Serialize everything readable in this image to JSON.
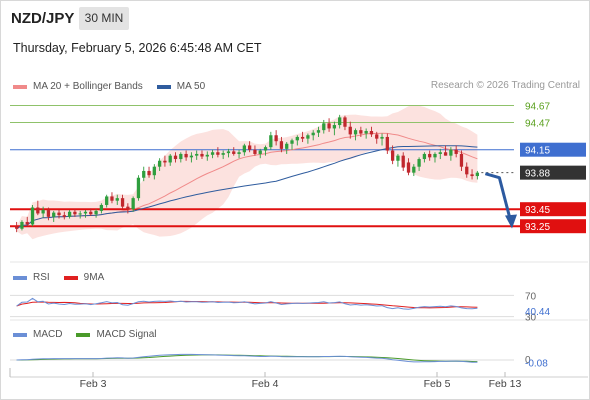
{
  "header": {
    "symbol": "NZD/JPY",
    "timeframe": "30 MIN",
    "datetime": "Thursday, February 5, 2026 6:45:48 AM CET",
    "copyright": "Research © 2026 Trading Central"
  },
  "legends": {
    "main": [
      {
        "label": "MA 20 + Bollinger Bands",
        "color": "#f08a8a"
      },
      {
        "label": "MA 50",
        "color": "#2f5c9e"
      }
    ],
    "rsi": [
      {
        "label": "RSI",
        "color": "#6b8fd6"
      },
      {
        "label": "9MA",
        "color": "#e02020"
      }
    ],
    "macd": [
      {
        "label": "MACD",
        "color": "#6b8fd6"
      },
      {
        "label": "MACD Signal",
        "color": "#4a9a2a"
      }
    ]
  },
  "chart_data": {
    "type": "candlestick",
    "xaxis_labels": [
      "Feb 3",
      "Feb 4",
      "Feb 5",
      "Feb 13"
    ],
    "ylim": [
      93.17,
      94.77
    ],
    "levels": [
      {
        "value": 94.67,
        "label": "94.67",
        "kind": "resistance",
        "color": "#8fc26a"
      },
      {
        "value": 94.47,
        "label": "94.47",
        "kind": "resistance",
        "color": "#8fc26a"
      },
      {
        "value": 94.15,
        "label": "94.15",
        "kind": "pivot",
        "color": "#3f6fd0"
      },
      {
        "value": 93.88,
        "label": "93.88",
        "kind": "last",
        "color": "#333333"
      },
      {
        "value": 93.45,
        "label": "93.45",
        "kind": "support",
        "color": "#e01010"
      },
      {
        "value": 93.25,
        "label": "93.25",
        "kind": "support",
        "color": "#e01010"
      }
    ],
    "candles": [
      [
        93.24,
        93.3,
        93.18,
        93.22
      ],
      [
        93.22,
        93.32,
        93.2,
        93.3
      ],
      [
        93.3,
        93.36,
        93.25,
        93.27
      ],
      [
        93.27,
        93.5,
        93.25,
        93.47
      ],
      [
        93.47,
        93.55,
        93.38,
        93.4
      ],
      [
        93.4,
        93.48,
        93.35,
        93.44
      ],
      [
        93.44,
        93.47,
        93.32,
        93.36
      ],
      [
        93.36,
        93.43,
        93.3,
        93.41
      ],
      [
        93.41,
        93.44,
        93.34,
        93.38
      ],
      [
        93.38,
        93.42,
        93.33,
        93.36
      ],
      [
        93.36,
        93.44,
        93.34,
        93.42
      ],
      [
        93.42,
        93.45,
        93.36,
        93.39
      ],
      [
        93.39,
        93.43,
        93.34,
        93.4
      ],
      [
        93.4,
        93.44,
        93.35,
        93.42
      ],
      [
        93.42,
        93.46,
        93.37,
        93.39
      ],
      [
        93.39,
        93.45,
        93.35,
        93.43
      ],
      [
        93.43,
        93.52,
        93.4,
        93.5
      ],
      [
        93.5,
        93.62,
        93.47,
        93.6
      ],
      [
        93.6,
        93.65,
        93.52,
        93.55
      ],
      [
        93.55,
        93.62,
        93.5,
        93.58
      ],
      [
        93.58,
        93.62,
        93.45,
        93.48
      ],
      [
        93.48,
        93.52,
        93.4,
        93.45
      ],
      [
        93.45,
        93.6,
        93.42,
        93.58
      ],
      [
        93.58,
        93.85,
        93.55,
        93.82
      ],
      [
        93.82,
        93.95,
        93.78,
        93.9
      ],
      [
        93.9,
        93.95,
        93.82,
        93.85
      ],
      [
        93.85,
        93.98,
        93.8,
        93.95
      ],
      [
        93.95,
        94.05,
        93.9,
        94.02
      ],
      [
        94.02,
        94.08,
        93.95,
        94.0
      ],
      [
        94.0,
        94.1,
        93.96,
        94.08
      ],
      [
        94.08,
        94.12,
        94.0,
        94.04
      ],
      [
        94.04,
        94.12,
        94.0,
        94.1
      ],
      [
        94.1,
        94.14,
        94.02,
        94.06
      ],
      [
        94.06,
        94.12,
        94.0,
        94.08
      ],
      [
        94.08,
        94.14,
        94.03,
        94.1
      ],
      [
        94.1,
        94.14,
        94.04,
        94.07
      ],
      [
        94.07,
        94.13,
        94.02,
        94.09
      ],
      [
        94.09,
        94.15,
        94.05,
        94.12
      ],
      [
        94.12,
        94.18,
        94.06,
        94.09
      ],
      [
        94.09,
        94.14,
        94.04,
        94.11
      ],
      [
        94.11,
        94.16,
        94.06,
        94.13
      ],
      [
        94.13,
        94.18,
        94.08,
        94.1
      ],
      [
        94.1,
        94.15,
        94.05,
        94.12
      ],
      [
        94.12,
        94.22,
        94.08,
        94.2
      ],
      [
        94.2,
        94.25,
        94.12,
        94.15
      ],
      [
        94.15,
        94.2,
        94.08,
        94.1
      ],
      [
        94.1,
        94.16,
        94.05,
        94.14
      ],
      [
        94.14,
        94.2,
        94.08,
        94.18
      ],
      [
        94.18,
        94.36,
        94.15,
        94.32
      ],
      [
        94.32,
        94.38,
        94.2,
        94.25
      ],
      [
        94.25,
        94.3,
        94.12,
        94.16
      ],
      [
        94.16,
        94.24,
        94.1,
        94.22
      ],
      [
        94.22,
        94.28,
        94.15,
        94.26
      ],
      [
        94.26,
        94.32,
        94.2,
        94.3
      ],
      [
        94.3,
        94.36,
        94.24,
        94.28
      ],
      [
        94.28,
        94.34,
        94.22,
        94.32
      ],
      [
        94.32,
        94.38,
        94.26,
        94.35
      ],
      [
        94.35,
        94.42,
        94.3,
        94.38
      ],
      [
        94.38,
        94.5,
        94.34,
        94.46
      ],
      [
        94.46,
        94.52,
        94.36,
        94.4
      ],
      [
        94.4,
        94.48,
        94.32,
        94.44
      ],
      [
        94.44,
        94.56,
        94.4,
        94.53
      ],
      [
        94.53,
        94.55,
        94.38,
        94.42
      ],
      [
        94.42,
        94.48,
        94.28,
        94.33
      ],
      [
        94.33,
        94.4,
        94.26,
        94.38
      ],
      [
        94.38,
        94.42,
        94.3,
        94.34
      ],
      [
        94.34,
        94.4,
        94.28,
        94.37
      ],
      [
        94.37,
        94.42,
        94.3,
        94.33
      ],
      [
        94.33,
        94.36,
        94.22,
        94.28
      ],
      [
        94.28,
        94.34,
        94.2,
        94.3
      ],
      [
        94.3,
        94.34,
        94.1,
        94.14
      ],
      [
        94.14,
        94.2,
        93.98,
        94.02
      ],
      [
        94.02,
        94.1,
        93.95,
        94.08
      ],
      [
        94.08,
        94.12,
        93.9,
        93.94
      ],
      [
        94.0,
        94.05,
        93.85,
        93.88
      ],
      [
        93.88,
        93.98,
        93.84,
        93.95
      ],
      [
        93.95,
        94.06,
        93.9,
        94.04
      ],
      [
        94.04,
        94.12,
        94.0,
        94.1
      ],
      [
        94.1,
        94.14,
        94.02,
        94.06
      ],
      [
        94.06,
        94.12,
        94.0,
        94.1
      ],
      [
        94.1,
        94.16,
        94.04,
        94.12
      ],
      [
        94.12,
        94.2,
        94.08,
        94.08
      ],
      [
        94.08,
        94.18,
        94.02,
        94.15
      ],
      [
        94.15,
        94.2,
        94.06,
        94.1
      ],
      [
        94.1,
        94.14,
        93.9,
        93.95
      ],
      [
        93.95,
        94.0,
        93.82,
        93.86
      ],
      [
        93.86,
        93.92,
        93.8,
        93.84
      ],
      [
        93.84,
        93.9,
        93.8,
        93.88
      ]
    ],
    "forecast_arrow": {
      "from": 93.88,
      "to": 93.34
    },
    "rsi": {
      "levels": [
        70,
        30
      ],
      "last": 40.44,
      "last_label": "40.44",
      "level_labels": [
        "70",
        "30"
      ]
    },
    "macd": {
      "level": 0,
      "level_label": "0",
      "last": -0.08,
      "last_label": "-0.08"
    }
  }
}
